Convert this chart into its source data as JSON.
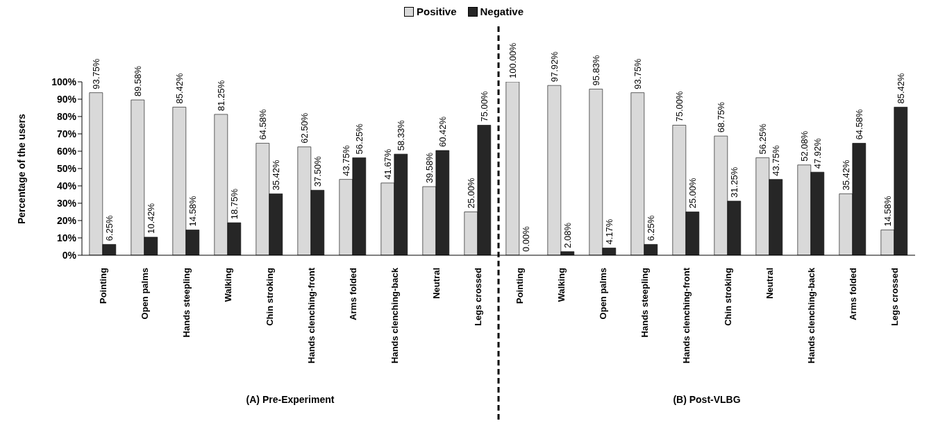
{
  "chart_data": {
    "type": "bar",
    "ylabel": "Percentage of the users",
    "categories": [
      "Pointing",
      "Open palms",
      "Hands steepling",
      "Walking",
      "Chin stroking",
      "Hands clenching-front",
      "Arms folded",
      "Hands clenching-back",
      "Neutral",
      "Legs crossed",
      "Pointing",
      "Walking",
      "Open palms",
      "Hands steepling",
      "Hands clenching-front",
      "Chin stroking",
      "Neutral",
      "Hands clenching-back",
      "Arms folded",
      "Legs crossed"
    ],
    "series": [
      {
        "name": "Positive",
        "color": "#d9d9d9",
        "values": [
          93.75,
          89.58,
          85.42,
          81.25,
          64.58,
          62.5,
          43.75,
          41.67,
          39.58,
          25,
          100,
          97.92,
          95.83,
          93.75,
          75,
          68.75,
          56.25,
          52.08,
          35.42,
          14.58
        ],
        "value_labels": [
          "93.75%",
          "89.58%",
          "85.42%",
          "81.25%",
          "64.58%",
          "62.50%",
          "43.75%",
          "41.67%",
          "39.58%",
          "25.00%",
          "100.00%",
          "97.92%",
          "95.83%",
          "93.75%",
          "75.00%",
          "68.75%",
          "56.25%",
          "52.08%",
          "35.42%",
          "14.58%"
        ]
      },
      {
        "name": "Negative",
        "color": "#262626",
        "values": [
          6.25,
          10.42,
          14.58,
          18.75,
          35.42,
          37.5,
          56.25,
          58.33,
          60.42,
          75,
          0,
          2.08,
          4.17,
          6.25,
          25,
          31.25,
          43.75,
          47.92,
          64.58,
          85.42
        ],
        "value_labels": [
          "6.25%",
          "10.42%",
          "14.58%",
          "18.75%",
          "35.42%",
          "37.50%",
          "56.25%",
          "58.33%",
          "60.42%",
          "75.00%",
          "0.00%",
          "2.08%",
          "4.17%",
          "6.25%",
          "25.00%",
          "31.25%",
          "43.75%",
          "47.92%",
          "64.58%",
          "85.42%"
        ]
      }
    ],
    "ylim": [
      0,
      100
    ],
    "yticks": [
      {
        "value": 0,
        "label": "0%"
      },
      {
        "value": 10,
        "label": "10%"
      },
      {
        "value": 20,
        "label": "20%"
      },
      {
        "value": 30,
        "label": "30%"
      },
      {
        "value": 40,
        "label": "40%"
      },
      {
        "value": 50,
        "label": "50%"
      },
      {
        "value": 60,
        "label": "60%"
      },
      {
        "value": 70,
        "label": "70%"
      },
      {
        "value": 80,
        "label": "80%"
      },
      {
        "value": 90,
        "label": "90%"
      },
      {
        "value": 100,
        "label": "100%"
      }
    ],
    "annotations": [
      "(A) Pre-Experiment",
      "(B) Post-VLBG"
    ],
    "legend": "top",
    "grid": false
  }
}
